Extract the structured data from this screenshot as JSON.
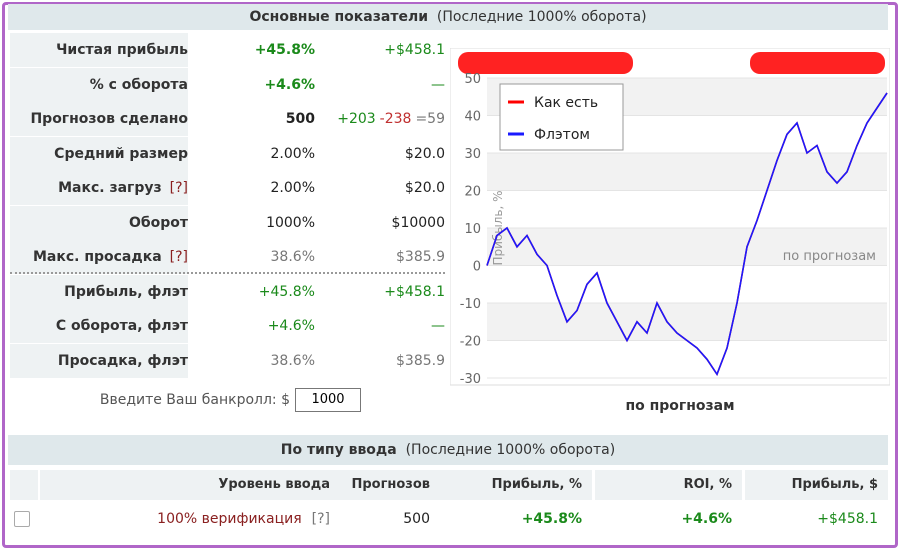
{
  "header": {
    "title": "Основные показатели",
    "subtitle": "(Последние 1000% оборота)"
  },
  "stats": {
    "rows": [
      {
        "label": "Чистая прибыль",
        "cells": [
          "+45.8%",
          "+$458.1"
        ]
      },
      {
        "label": "% с оборота",
        "cells": [
          "+4.6%",
          "—"
        ]
      },
      {
        "label": "Прогнозов сделано",
        "cells": [
          "500",
          [
            "+203",
            "-238",
            "=59"
          ]
        ]
      },
      {
        "label": "Средний размер",
        "cells": [
          "2.00%",
          "$20.0"
        ]
      },
      {
        "label": "Макс. загруз",
        "help": "[?]",
        "cells": [
          "2.00%",
          "$20.0"
        ]
      },
      {
        "label": "Оборот",
        "cells": [
          "1000%",
          "$10000"
        ]
      },
      {
        "label": "Макс. просадка",
        "help": "[?]",
        "cells": [
          "38.6%",
          "$385.9"
        ]
      },
      {
        "label": "Прибыль, флэт",
        "cells": [
          "+45.8%",
          "+$458.1"
        ]
      },
      {
        "label": "С оборота, флэт",
        "cells": [
          "+4.6%",
          "—"
        ]
      },
      {
        "label": "Просадка, флэт",
        "cells": [
          "38.6%",
          "$385.9"
        ]
      }
    ]
  },
  "bankroll": {
    "label": "Введите Ваш банкролл: $",
    "value": "1000"
  },
  "chart_data": {
    "type": "line",
    "xlabel": "по прогнозам",
    "ylabel": "Прибыль, %",
    "annotation": "по прогнозам",
    "ylim": [
      -30,
      50
    ],
    "yticks": [
      -30,
      -20,
      -10,
      0,
      10,
      20,
      30,
      40,
      50
    ],
    "grid": true,
    "legend": "upper left",
    "series": [
      {
        "name": "Как есть",
        "color": "#ff0000",
        "values": [
          0,
          8,
          10,
          5,
          8,
          3,
          0,
          -8,
          -15,
          -12,
          -5,
          -2,
          -10,
          -15,
          -20,
          -15,
          -18,
          -10,
          -15,
          -18,
          -20,
          -22,
          -25,
          -29,
          -22,
          -10,
          5,
          12,
          20,
          28,
          35,
          38,
          30,
          32,
          25,
          22,
          25,
          32,
          38,
          42,
          46
        ]
      },
      {
        "name": "Флэтом",
        "color": "#1a1aff",
        "values": [
          0,
          8,
          10,
          5,
          8,
          3,
          0,
          -8,
          -15,
          -12,
          -5,
          -2,
          -10,
          -15,
          -20,
          -15,
          -18,
          -10,
          -15,
          -18,
          -20,
          -22,
          -25,
          -29,
          -22,
          -10,
          5,
          12,
          20,
          28,
          35,
          38,
          30,
          32,
          25,
          22,
          25,
          32,
          38,
          42,
          46
        ]
      }
    ]
  },
  "section2": {
    "title": "По типу ввода",
    "subtitle": "(Последние 1000% оборота)",
    "columns": [
      "Уровень ввода",
      "Прогнозов",
      "Прибыль, %",
      "ROI, %",
      "Прибыль, $"
    ],
    "rows": [
      {
        "level": "100% верификация",
        "help": "[?]",
        "cells": [
          "500",
          "+45.8%",
          "+4.6%",
          "+$458.1"
        ]
      }
    ]
  }
}
